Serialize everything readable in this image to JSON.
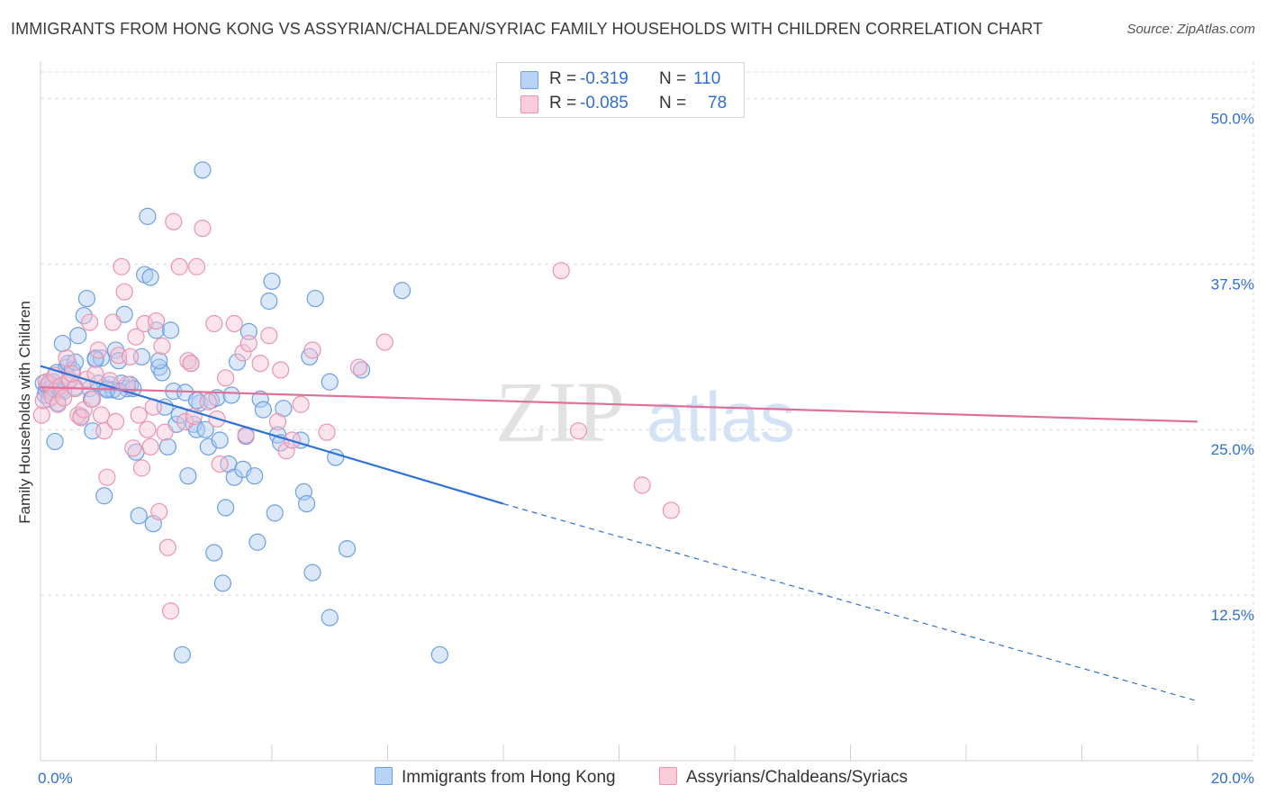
{
  "title": "IMMIGRANTS FROM HONG KONG VS ASSYRIAN/CHALDEAN/SYRIAC FAMILY HOUSEHOLDS WITH CHILDREN CORRELATION CHART",
  "source": "Source: ZipAtlas.com",
  "watermark": {
    "zip": "ZIP",
    "atlas": "atlas"
  },
  "legend": {
    "r_label": "R =",
    "n_label": "N =",
    "series1": {
      "r": "-0.319",
      "n": "110"
    },
    "series2": {
      "r": "-0.085",
      "n": "78"
    }
  },
  "colors": {
    "blue_fill": "#aecbf3",
    "blue_stroke": "#6d9fe3",
    "blue_line": "#2f72d8",
    "pink_fill": "#f7c4d3",
    "pink_stroke": "#ea94b0",
    "pink_line": "#e0709a",
    "axis_text": "#2f6fcf",
    "grid": "#dcdcdc"
  },
  "chart_data": {
    "type": "scatter",
    "title": "IMMIGRANTS FROM HONG KONG VS ASSYRIAN/CHALDEAN/SYRIAC FAMILY HOUSEHOLDS WITH CHILDREN CORRELATION CHART",
    "xlabel": "",
    "ylabel": "Family Households with Children",
    "xlim": [
      0,
      20
    ],
    "ylim": [
      0,
      52
    ],
    "x_tick_labels": [
      "0.0%",
      "20.0%"
    ],
    "y_ticks": [
      12.5,
      25.0,
      37.5,
      50.0
    ],
    "y_tick_labels": [
      "12.5%",
      "25.0%",
      "37.5%",
      "50.0%"
    ],
    "grid": true,
    "series": [
      {
        "name": "Immigrants from Hong Kong",
        "color": "#6d9fe3",
        "r": -0.319,
        "n": 110,
        "trend": {
          "x0": 0,
          "y0": 29.8,
          "x1": 8.0,
          "y1": 19.4,
          "dash_to_x": 20,
          "dash_to_y": 4.5
        },
        "points": [
          [
            0.05,
            28.5
          ],
          [
            0.08,
            27.6
          ],
          [
            0.1,
            28.0
          ],
          [
            0.12,
            28.3
          ],
          [
            0.15,
            27.3
          ],
          [
            0.18,
            28.1
          ],
          [
            0.2,
            27.8
          ],
          [
            0.22,
            28.6
          ],
          [
            0.25,
            28.0
          ],
          [
            0.28,
            29.3
          ],
          [
            0.3,
            28.2
          ],
          [
            0.35,
            28.0
          ],
          [
            0.38,
            31.5
          ],
          [
            0.4,
            27.9
          ],
          [
            0.45,
            29.7
          ],
          [
            0.48,
            30.0
          ],
          [
            0.5,
            28.7
          ],
          [
            0.55,
            29.5
          ],
          [
            0.6,
            30.1
          ],
          [
            0.65,
            32.1
          ],
          [
            0.7,
            26.0
          ],
          [
            0.75,
            33.6
          ],
          [
            0.8,
            34.9
          ],
          [
            0.85,
            28.1
          ],
          [
            0.88,
            27.3
          ],
          [
            0.9,
            24.9
          ],
          [
            0.95,
            30.4
          ],
          [
            1.0,
            28.5
          ],
          [
            1.05,
            30.4
          ],
          [
            1.1,
            20.0
          ],
          [
            1.15,
            28.1
          ],
          [
            1.2,
            28.4
          ],
          [
            1.25,
            28.0
          ],
          [
            1.3,
            31.0
          ],
          [
            1.35,
            30.2
          ],
          [
            1.4,
            28.5
          ],
          [
            1.45,
            33.7
          ],
          [
            1.5,
            28.1
          ],
          [
            1.55,
            28.4
          ],
          [
            1.6,
            28.1
          ],
          [
            1.65,
            23.3
          ],
          [
            1.7,
            18.5
          ],
          [
            1.75,
            30.5
          ],
          [
            1.8,
            36.7
          ],
          [
            1.85,
            41.1
          ],
          [
            1.9,
            36.5
          ],
          [
            1.95,
            17.9
          ],
          [
            2.0,
            32.5
          ],
          [
            2.05,
            29.7
          ],
          [
            2.1,
            29.3
          ],
          [
            2.15,
            26.7
          ],
          [
            2.2,
            23.7
          ],
          [
            2.25,
            32.5
          ],
          [
            2.3,
            27.9
          ],
          [
            2.35,
            25.4
          ],
          [
            2.4,
            26.1
          ],
          [
            2.45,
            8.0
          ],
          [
            2.5,
            27.8
          ],
          [
            2.55,
            21.5
          ],
          [
            2.6,
            30.0
          ],
          [
            2.65,
            25.4
          ],
          [
            2.7,
            25.0
          ],
          [
            2.75,
            27.0
          ],
          [
            2.8,
            44.6
          ],
          [
            2.85,
            25.0
          ],
          [
            2.9,
            23.7
          ],
          [
            2.95,
            27.2
          ],
          [
            3.0,
            15.7
          ],
          [
            3.05,
            27.4
          ],
          [
            3.1,
            24.2
          ],
          [
            3.15,
            13.4
          ],
          [
            3.2,
            19.1
          ],
          [
            3.25,
            22.4
          ],
          [
            3.3,
            27.6
          ],
          [
            3.35,
            21.4
          ],
          [
            3.4,
            30.1
          ],
          [
            3.5,
            22.0
          ],
          [
            3.55,
            24.5
          ],
          [
            3.6,
            32.4
          ],
          [
            3.7,
            21.5
          ],
          [
            3.75,
            16.5
          ],
          [
            3.8,
            27.3
          ],
          [
            3.85,
            26.5
          ],
          [
            3.95,
            34.7
          ],
          [
            4.0,
            36.2
          ],
          [
            4.05,
            18.7
          ],
          [
            4.1,
            24.6
          ],
          [
            4.15,
            24.0
          ],
          [
            4.2,
            26.6
          ],
          [
            4.5,
            24.2
          ],
          [
            4.55,
            20.3
          ],
          [
            4.6,
            19.4
          ],
          [
            4.65,
            30.5
          ],
          [
            4.7,
            14.2
          ],
          [
            4.75,
            34.9
          ],
          [
            5.0,
            10.8
          ],
          [
            5.0,
            28.6
          ],
          [
            5.1,
            22.9
          ],
          [
            5.3,
            16.0
          ],
          [
            5.55,
            29.5
          ],
          [
            6.25,
            35.5
          ],
          [
            6.9,
            8.0
          ],
          [
            1.15,
            28.0
          ],
          [
            0.6,
            28.2
          ],
          [
            0.3,
            27.0
          ],
          [
            0.25,
            24.1
          ],
          [
            2.05,
            30.2
          ],
          [
            1.35,
            27.9
          ],
          [
            0.95,
            30.3
          ],
          [
            2.7,
            27.2
          ]
        ]
      },
      {
        "name": "Assyrians/Chaldeans/Syriacs",
        "color": "#ea94b0",
        "r": -0.085,
        "n": 78,
        "trend": {
          "x0": 0,
          "y0": 28.2,
          "x1": 20,
          "y1": 25.6
        },
        "points": [
          [
            0.02,
            26.1
          ],
          [
            0.05,
            27.2
          ],
          [
            0.1,
            28.6
          ],
          [
            0.15,
            28.5
          ],
          [
            0.2,
            27.5
          ],
          [
            0.25,
            29.1
          ],
          [
            0.3,
            26.9
          ],
          [
            0.35,
            28.3
          ],
          [
            0.4,
            27.4
          ],
          [
            0.45,
            30.4
          ],
          [
            0.5,
            28.8
          ],
          [
            0.55,
            29.2
          ],
          [
            0.6,
            28.1
          ],
          [
            0.65,
            26.1
          ],
          [
            0.7,
            25.9
          ],
          [
            0.75,
            26.5
          ],
          [
            0.8,
            28.8
          ],
          [
            0.85,
            33.1
          ],
          [
            0.9,
            27.3
          ],
          [
            0.95,
            29.2
          ],
          [
            1.0,
            31.0
          ],
          [
            1.05,
            26.1
          ],
          [
            1.1,
            24.9
          ],
          [
            1.15,
            21.4
          ],
          [
            1.2,
            28.7
          ],
          [
            1.25,
            33.1
          ],
          [
            1.3,
            25.6
          ],
          [
            1.35,
            30.6
          ],
          [
            1.4,
            37.3
          ],
          [
            1.45,
            35.4
          ],
          [
            1.5,
            28.4
          ],
          [
            1.55,
            30.5
          ],
          [
            1.6,
            23.6
          ],
          [
            1.65,
            32.0
          ],
          [
            1.7,
            26.1
          ],
          [
            1.75,
            22.1
          ],
          [
            1.8,
            33.0
          ],
          [
            1.85,
            25.0
          ],
          [
            1.9,
            23.7
          ],
          [
            1.95,
            26.7
          ],
          [
            2.0,
            33.2
          ],
          [
            2.05,
            18.8
          ],
          [
            2.1,
            31.3
          ],
          [
            2.15,
            24.8
          ],
          [
            2.2,
            16.1
          ],
          [
            2.25,
            11.3
          ],
          [
            2.3,
            40.7
          ],
          [
            2.4,
            37.3
          ],
          [
            2.5,
            25.6
          ],
          [
            2.55,
            30.2
          ],
          [
            2.6,
            30.0
          ],
          [
            2.65,
            26.0
          ],
          [
            2.7,
            37.3
          ],
          [
            2.8,
            40.2
          ],
          [
            2.9,
            27.1
          ],
          [
            3.0,
            33.0
          ],
          [
            3.05,
            25.8
          ],
          [
            3.1,
            22.4
          ],
          [
            3.2,
            28.9
          ],
          [
            3.35,
            33.0
          ],
          [
            3.5,
            30.8
          ],
          [
            3.55,
            24.6
          ],
          [
            3.6,
            31.5
          ],
          [
            3.8,
            30.0
          ],
          [
            3.95,
            32.1
          ],
          [
            4.1,
            25.6
          ],
          [
            4.15,
            29.5
          ],
          [
            4.25,
            23.4
          ],
          [
            4.35,
            24.2
          ],
          [
            4.5,
            26.9
          ],
          [
            4.7,
            31.0
          ],
          [
            4.95,
            24.8
          ],
          [
            5.5,
            29.7
          ],
          [
            5.95,
            31.6
          ],
          [
            9.0,
            37.0
          ],
          [
            9.3,
            24.9
          ],
          [
            10.4,
            20.8
          ],
          [
            10.9,
            18.9
          ]
        ]
      }
    ]
  },
  "bottom_legend": {
    "series1_label": "Immigrants from Hong Kong",
    "series2_label": "Assyrians/Chaldeans/Syriacs"
  }
}
